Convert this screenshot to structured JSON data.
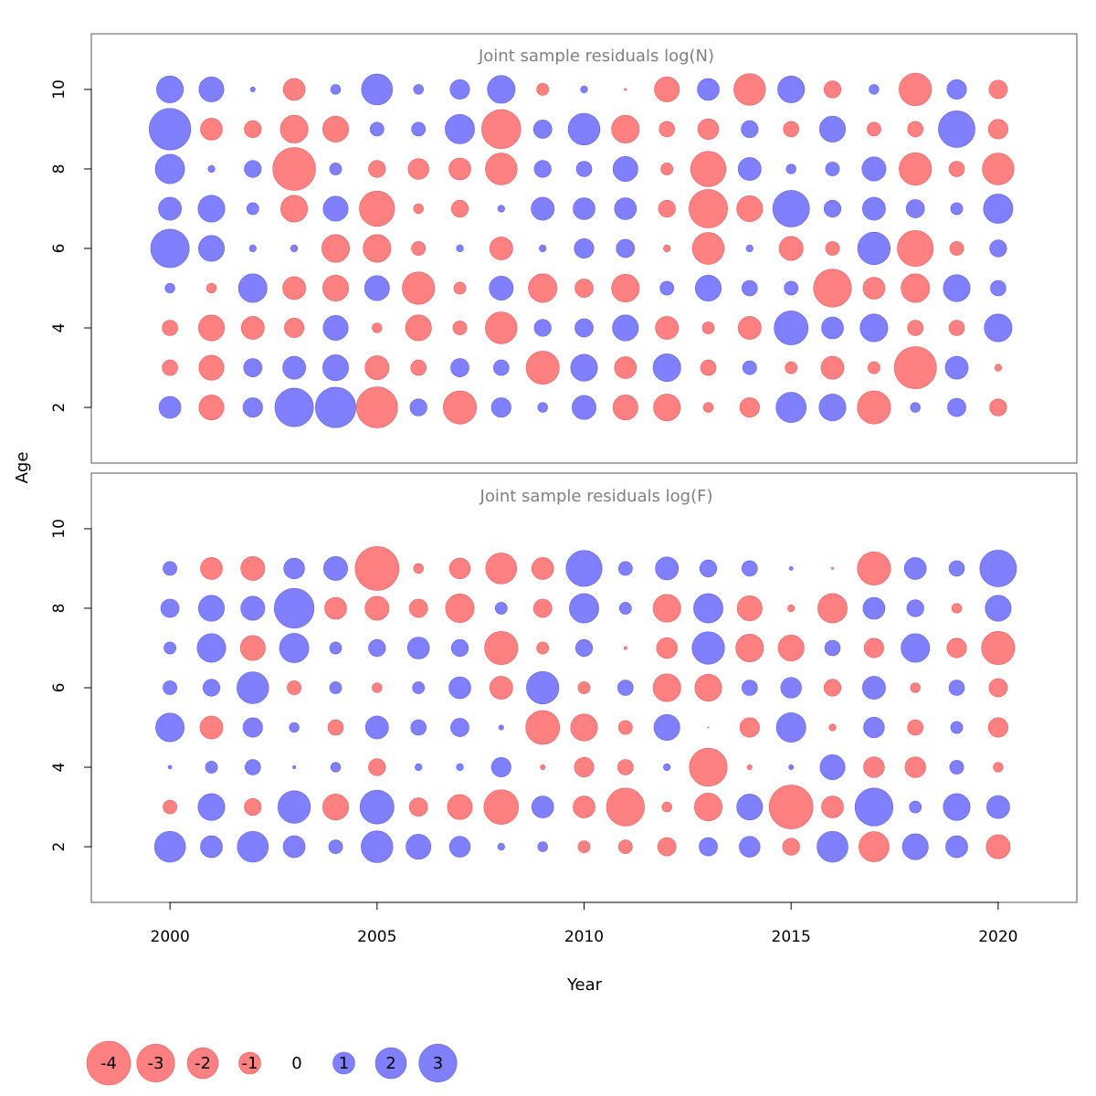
{
  "colors": {
    "negative": "#FF8080",
    "negative_stroke": "#E06060",
    "positive": "#8080FF",
    "positive_stroke": "#6060E0",
    "zero_label": "#000000"
  },
  "chart_data": [
    {
      "type": "scatter",
      "subtype": "bubble",
      "title": "Joint sample residuals log(N)",
      "xlabel": "Year",
      "ylabel": "Age",
      "x_ticks": [
        "2000",
        "2005",
        "2010",
        "2015",
        "2020"
      ],
      "y_ticks": [
        "2",
        "4",
        "6",
        "8",
        "10"
      ],
      "xlim": [
        1998.1,
        2021.9
      ],
      "ylim": [
        0.6,
        11.4
      ],
      "years": [
        2000,
        2001,
        2002,
        2003,
        2004,
        2005,
        2006,
        2007,
        2008,
        2009,
        2010,
        2011,
        2012,
        2013,
        2014,
        2015,
        2016,
        2017,
        2018,
        2019,
        2020
      ],
      "ages": [
        2,
        3,
        4,
        5,
        6,
        7,
        8,
        9,
        10
      ],
      "residuals": [
        [
          1.0,
          -1.3,
          0.8,
          3.1,
          3.4,
          -3.5,
          0.6,
          -2.3,
          0.8,
          0.2,
          1.2,
          -1.3,
          -1.5,
          -0.2,
          -0.8,
          1.9,
          1.5,
          -2.3,
          0.2,
          0.7,
          -0.6
        ],
        [
          -0.5,
          -1.3,
          0.7,
          1.1,
          1.4,
          -1.2,
          -0.5,
          0.7,
          0.5,
          -2.3,
          1.5,
          -1.0,
          1.6,
          -0.5,
          0.4,
          -0.3,
          -1.1,
          -0.3,
          -3.7,
          1.1,
          -0.1
        ],
        [
          -0.5,
          -1.4,
          -1.1,
          -0.8,
          1.3,
          -0.2,
          -1.4,
          -0.4,
          -2.1,
          0.6,
          0.7,
          1.4,
          -1.1,
          -0.3,
          -1.1,
          2.4,
          1.0,
          1.6,
          -0.5,
          -0.5,
          1.6
        ],
        [
          0.2,
          -0.2,
          1.7,
          -1.1,
          -1.4,
          1.3,
          -2.2,
          -0.3,
          1.2,
          -1.7,
          -0.7,
          -1.6,
          0.4,
          1.4,
          0.5,
          0.4,
          -3.0,
          -1.0,
          -1.7,
          1.5,
          0.5
        ],
        [
          3.1,
          1.4,
          0.1,
          0.1,
          -1.6,
          -1.6,
          -0.4,
          0.1,
          -1.1,
          0.1,
          0.8,
          0.7,
          -0.1,
          -2.1,
          0.1,
          -1.2,
          -0.4,
          2.2,
          -2.7,
          -0.4,
          0.6
        ],
        [
          1.1,
          1.5,
          0.3,
          -1.5,
          1.3,
          -2.6,
          -0.2,
          -0.6,
          0.1,
          1.1,
          1.0,
          1.0,
          -0.6,
          -3.1,
          -1.4,
          2.8,
          0.6,
          1.1,
          0.7,
          0.3,
          1.8
        ],
        [
          1.8,
          0.1,
          0.6,
          -3.8,
          0.3,
          -0.6,
          -0.9,
          -1.0,
          -2.1,
          0.6,
          0.5,
          1.3,
          -0.3,
          -2.6,
          1.1,
          0.2,
          0.4,
          1.2,
          -2.2,
          -0.5,
          -2.1
        ],
        [
          3.6,
          -1.0,
          -0.6,
          -1.6,
          -1.4,
          0.4,
          0.4,
          1.8,
          -3.2,
          0.7,
          2.1,
          -1.6,
          -0.5,
          -0.9,
          0.6,
          -0.5,
          1.4,
          -0.4,
          -0.5,
          2.8,
          -0.8
        ],
        [
          1.5,
          1.3,
          0.05,
          -1.0,
          0.2,
          2.0,
          0.2,
          0.8,
          1.6,
          -0.3,
          0.1,
          -0.01,
          -1.3,
          1.0,
          -2.1,
          1.5,
          -0.6,
          0.2,
          -2.2,
          0.8,
          -0.7
        ]
      ]
    },
    {
      "type": "scatter",
      "subtype": "bubble",
      "title": "Joint sample residuals log(F)",
      "xlabel": "Year",
      "ylabel": "Age",
      "x_ticks": [
        "2000",
        "2005",
        "2010",
        "2015",
        "2020"
      ],
      "y_ticks": [
        "2",
        "4",
        "6",
        "8",
        "10"
      ],
      "xlim": [
        1998.1,
        2021.9
      ],
      "ylim": [
        0.6,
        11.4
      ],
      "years": [
        2000,
        2001,
        2002,
        2003,
        2004,
        2005,
        2006,
        2007,
        2008,
        2009,
        2010,
        2011,
        2012,
        2013,
        2014,
        2015,
        2016,
        2017,
        2018,
        2019,
        2020
      ],
      "ages": [
        2,
        3,
        4,
        5,
        6,
        7,
        8,
        9
      ],
      "residuals": [
        [
          2.0,
          1.0,
          2.0,
          1.0,
          0.4,
          2.1,
          1.3,
          0.9,
          0.1,
          0.2,
          -0.3,
          -0.4,
          -0.7,
          0.7,
          0.9,
          -0.6,
          2.0,
          -1.9,
          1.4,
          1.0,
          -1.2
        ],
        [
          -0.4,
          1.5,
          -0.6,
          2.2,
          -1.4,
          2.4,
          -0.7,
          -1.3,
          -2.5,
          1.0,
          -1.0,
          -3.0,
          -0.2,
          -1.6,
          1.4,
          -4.0,
          -1.0,
          3.0,
          0.3,
          1.5,
          1.1
        ],
        [
          0.03,
          0.3,
          0.5,
          0.02,
          0.2,
          -0.6,
          0.1,
          0.1,
          0.8,
          -0.05,
          -0.8,
          -0.5,
          0.1,
          -3.0,
          -0.05,
          0.05,
          1.3,
          -0.9,
          -0.9,
          0.4,
          -0.2
        ],
        [
          1.7,
          -1.1,
          0.8,
          0.2,
          -0.5,
          1.1,
          0.5,
          0.7,
          0.05,
          -2.4,
          -1.5,
          -0.4,
          1.4,
          0.0,
          -0.8,
          1.8,
          -0.1,
          0.9,
          -0.5,
          0.3,
          -0.8
        ],
        [
          0.4,
          0.6,
          2.1,
          -0.4,
          0.3,
          -0.2,
          0.3,
          1.0,
          -1.1,
          2.2,
          -0.3,
          0.5,
          -1.6,
          -1.5,
          0.5,
          0.9,
          -0.6,
          1.1,
          -0.2,
          0.5,
          -0.7
        ],
        [
          0.3,
          1.7,
          -1.3,
          1.8,
          0.3,
          0.6,
          1.0,
          0.6,
          -2.3,
          -0.3,
          0.6,
          -0.02,
          -0.9,
          2.2,
          -1.6,
          -1.4,
          0.5,
          -0.8,
          1.7,
          -0.8,
          -2.3
        ],
        [
          0.7,
          1.4,
          1.2,
          3.3,
          -1.0,
          -1.2,
          -0.7,
          -1.7,
          0.3,
          -0.7,
          1.8,
          0.3,
          -1.6,
          1.8,
          -1.3,
          -0.1,
          -1.8,
          1.0,
          0.6,
          -0.2,
          1.4
        ],
        [
          0.4,
          -1.0,
          -1.2,
          0.9,
          1.2,
          -4.0,
          -0.2,
          -0.9,
          -2.0,
          -1.0,
          2.7,
          0.4,
          1.1,
          0.6,
          0.5,
          0.03,
          -0.01,
          -2.3,
          1.0,
          0.5,
          2.8
        ]
      ]
    }
  ],
  "legend": {
    "items": [
      {
        "label": "-4",
        "value": -4
      },
      {
        "label": "-3",
        "value": -3
      },
      {
        "label": "-2",
        "value": -2
      },
      {
        "label": "-1",
        "value": -1
      },
      {
        "label": "0",
        "value": 0
      },
      {
        "label": "1",
        "value": 1
      },
      {
        "label": "2",
        "value": 2
      },
      {
        "label": "3",
        "value": 3
      }
    ]
  }
}
